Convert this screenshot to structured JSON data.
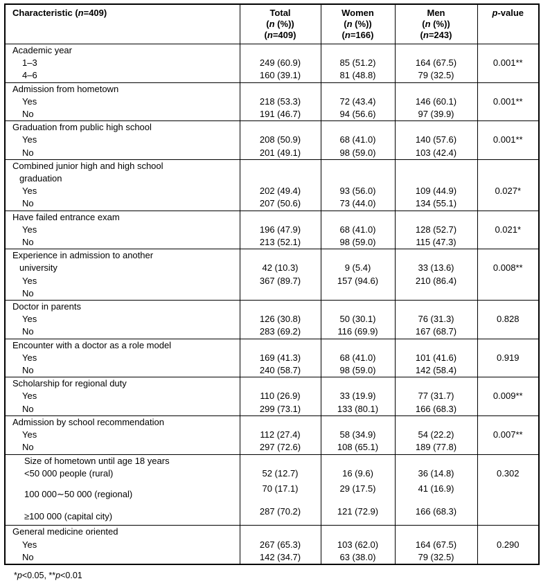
{
  "table": {
    "header": {
      "characteristic": [
        {
          "t": "Characteristic ("
        },
        {
          "t": "n",
          "i": true
        },
        {
          "t": "=409)"
        }
      ],
      "total": {
        "l1": [
          {
            "t": "Total"
          }
        ],
        "l2": [
          {
            "t": "("
          },
          {
            "t": "n",
            "i": true
          },
          {
            "t": " (%))"
          }
        ],
        "l3": [
          {
            "t": "("
          },
          {
            "t": "n",
            "i": true
          },
          {
            "t": "=409)"
          }
        ]
      },
      "women": {
        "l1": [
          {
            "t": "Women"
          }
        ],
        "l2": [
          {
            "t": "("
          },
          {
            "t": "n",
            "i": true
          },
          {
            "t": " (%))"
          }
        ],
        "l3": [
          {
            "t": "("
          },
          {
            "t": "n",
            "i": true
          },
          {
            "t": "=166)"
          }
        ]
      },
      "men": {
        "l1": [
          {
            "t": "Men"
          }
        ],
        "l2": [
          {
            "t": "("
          },
          {
            "t": "n",
            "i": true
          },
          {
            "t": " (%))"
          }
        ],
        "l3": [
          {
            "t": "("
          },
          {
            "t": "n",
            "i": true
          },
          {
            "t": "=243)"
          }
        ]
      },
      "pvalue": [
        {
          "t": "p",
          "i": true
        },
        {
          "t": "-value"
        }
      ]
    },
    "sections": [
      {
        "rows": [
          {
            "label": "Academic year",
            "indent": 0
          },
          {
            "label": "1–3",
            "indent": 2,
            "total": "249 (60.9)",
            "women": "85 (51.2)",
            "men": "164 (67.5)",
            "p": "0.001**"
          },
          {
            "label": "4–6",
            "indent": 2,
            "total": "160 (39.1)",
            "women": "81 (48.8)",
            "men": "79 (32.5)"
          }
        ]
      },
      {
        "rows": [
          {
            "label": "Admission from hometown",
            "indent": 0
          },
          {
            "label": "Yes",
            "indent": 2,
            "total": "218 (53.3)",
            "women": "72 (43.4)",
            "men": "146 (60.1)",
            "p": "0.001**"
          },
          {
            "label": "No",
            "indent": 2,
            "total": "191 (46.7)",
            "women": "94 (56.6)",
            "men": "97 (39.9)"
          }
        ]
      },
      {
        "rows": [
          {
            "label": "Graduation from public high school",
            "indent": 0
          },
          {
            "label": "Yes",
            "indent": 2,
            "total": "208 (50.9)",
            "women": "68 (41.0)",
            "men": "140 (57.6)",
            "p": "0.001**"
          },
          {
            "label": "No",
            "indent": 2,
            "total": "201 (49.1)",
            "women": "98 (59.0)",
            "men": "103 (42.4)"
          }
        ]
      },
      {
        "rows": [
          {
            "label": "Combined junior high and high school",
            "indent": 0
          },
          {
            "label": "graduation",
            "indent": 1
          },
          {
            "label": "Yes",
            "indent": 2,
            "total": "202 (49.4)",
            "women": "93 (56.0)",
            "men": "109 (44.9)",
            "p": "0.027*"
          },
          {
            "label": "No",
            "indent": 2,
            "total": "207 (50.6)",
            "women": "73 (44.0)",
            "men": "134 (55.1)"
          }
        ]
      },
      {
        "rows": [
          {
            "label": "Have failed entrance exam",
            "indent": 0
          },
          {
            "label": "Yes",
            "indent": 2,
            "total": "196 (47.9)",
            "women": "68 (41.0)",
            "men": "128 (52.7)",
            "p": "0.021*"
          },
          {
            "label": "No",
            "indent": 2,
            "total": "213 (52.1)",
            "women": "98 (59.0)",
            "men": "115 (47.3)"
          }
        ]
      },
      {
        "rows": [
          {
            "label": "Experience in admission to another",
            "indent": 0
          },
          {
            "label": "university",
            "indent": 1,
            "total": "42 (10.3)",
            "women": "9 (5.4)",
            "men": "33 (13.6)",
            "p": "0.008**"
          },
          {
            "label": "Yes",
            "indent": 2,
            "total": "367 (89.7)",
            "women": "157 (94.6)",
            "men": "210 (86.4)"
          },
          {
            "label": "No",
            "indent": 2
          }
        ]
      },
      {
        "rows": [
          {
            "label": "Doctor in parents",
            "indent": 0
          },
          {
            "label": "Yes",
            "indent": 2,
            "total": "126 (30.8)",
            "women": "50 (30.1)",
            "men": "76 (31.3)",
            "p": "0.828"
          },
          {
            "label": "No",
            "indent": 2,
            "total": "283 (69.2)",
            "women": "116 (69.9)",
            "men": "167 (68.7)"
          }
        ]
      },
      {
        "rows": [
          {
            "label": "Encounter with a doctor as a role model",
            "indent": 0
          },
          {
            "label": "Yes",
            "indent": 2,
            "total": "169 (41.3)",
            "women": "68 (41.0)",
            "men": "101 (41.6)",
            "p": "0.919"
          },
          {
            "label": "No",
            "indent": 2,
            "total": "240 (58.7)",
            "women": "98 (59.0)",
            "men": "142 (58.4)"
          }
        ]
      },
      {
        "rows": [
          {
            "label": "Scholarship for regional duty",
            "indent": 0
          },
          {
            "label": "Yes",
            "indent": 2,
            "total": "110 (26.9)",
            "women": "33 (19.9)",
            "men": "77 (31.7)",
            "p": "0.009**"
          },
          {
            "label": "No",
            "indent": 2,
            "total": "299 (73.1)",
            "women": "133 (80.1)",
            "men": "166 (68.3)"
          }
        ]
      },
      {
        "rows": [
          {
            "label": "Admission by school recommendation",
            "indent": 0
          },
          {
            "label": "Yes",
            "indent": 2,
            "total": "112 (27.4)",
            "women": "58 (34.9)",
            "men": "54 (22.2)",
            "p": "0.007**"
          },
          {
            "label": "No",
            "indent": 2,
            "total": "297 (72.6)",
            "women": "108 (65.1)",
            "men": "189 (77.8)"
          }
        ]
      },
      {
        "rows": [
          {
            "label": "Size of hometown until age 18 years",
            "indent": 3
          },
          {
            "label": "<50 000 people (rural)",
            "indent": 3,
            "total": "52 (12.7)",
            "women": "16 (9.6)",
            "men": "36 (14.8)",
            "p": "0.302"
          },
          {
            "label": "100 000∼50 000 (regional)",
            "indent": 3,
            "tall": true,
            "total": "70 (17.1)",
            "women": "29 (17.5)",
            "men": "41 (16.9)"
          },
          {
            "label": "≥100 000 (capital city)",
            "indent": 3,
            "tall": true,
            "total": "287 (70.2)",
            "women": "121 (72.9)",
            "men": "166 (68.3)"
          }
        ]
      },
      {
        "rows": [
          {
            "label": "General medicine oriented",
            "indent": 0
          },
          {
            "label": "Yes",
            "indent": 2,
            "total": "267 (65.3)",
            "women": "103 (62.0)",
            "men": "164 (67.5)",
            "p": "0.290"
          },
          {
            "label": "No",
            "indent": 2,
            "total": "142 (34.7)",
            "women": "63 (38.0)",
            "men": "79 (32.5)"
          }
        ]
      }
    ],
    "footnote": [
      {
        "t": "*"
      },
      {
        "t": "p",
        "i": true
      },
      {
        "t": "<0.05, **"
      },
      {
        "t": "p",
        "i": true
      },
      {
        "t": "<0.01"
      }
    ]
  }
}
